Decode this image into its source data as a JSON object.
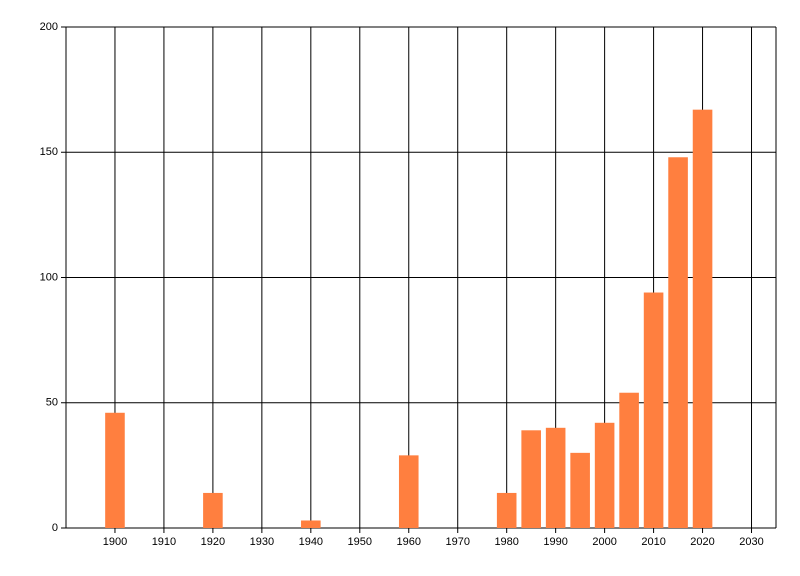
{
  "chart_data": {
    "type": "bar",
    "x": [
      1900,
      1920,
      1940,
      1960,
      1980,
      1985,
      1990,
      1995,
      2000,
      2005,
      2010,
      2015,
      2020
    ],
    "values": [
      46,
      14,
      3,
      29,
      14,
      39,
      40,
      30,
      42,
      54,
      94,
      148,
      167
    ],
    "color": "#ff7f3f",
    "xlim": [
      1890,
      2035
    ],
    "xticks": [
      1900,
      1910,
      1920,
      1930,
      1940,
      1950,
      1960,
      1970,
      1980,
      1990,
      2000,
      2010,
      2020,
      2030
    ],
    "ylim": [
      0,
      200
    ],
    "yticks": [
      0,
      50,
      100,
      150,
      200
    ],
    "grid": true
  }
}
